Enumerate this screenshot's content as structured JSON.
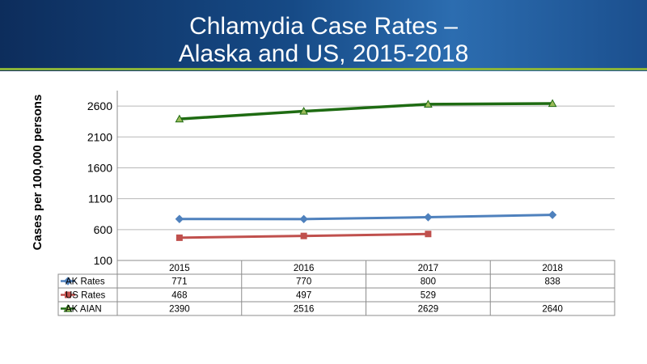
{
  "header": {
    "title_line1": "Chlamydia Case Rates –",
    "title_line2": "Alaska and US, 2015-2018"
  },
  "chart_data": {
    "type": "line",
    "title": "Chlamydia Case Rates – Alaska and US, 2015-2018",
    "ylabel": "Cases per 100,000 persons",
    "xlabel": "",
    "categories": [
      "2015",
      "2016",
      "2017",
      "2018"
    ],
    "yticks": [
      "100",
      "600",
      "1100",
      "1600",
      "2100",
      "2600"
    ],
    "ylim": [
      100,
      2850
    ],
    "grid": true,
    "legend": "data-table",
    "series": [
      {
        "name": "AK Rates",
        "values": [
          771,
          770,
          800,
          838
        ],
        "labels": [
          "771",
          "770",
          "800",
          "838"
        ],
        "color": "#4f81bd",
        "marker": "diamond"
      },
      {
        "name": "US Rates",
        "values": [
          468,
          497,
          529,
          null
        ],
        "labels": [
          "468",
          "497",
          "529",
          ""
        ],
        "color": "#c0504d",
        "marker": "square"
      },
      {
        "name": "AK AIAN",
        "values": [
          2390,
          2516,
          2629,
          2640
        ],
        "labels": [
          "2390",
          "2516",
          "2629",
          "2640"
        ],
        "color": "#1e6b12",
        "marker": "triangle"
      }
    ]
  }
}
